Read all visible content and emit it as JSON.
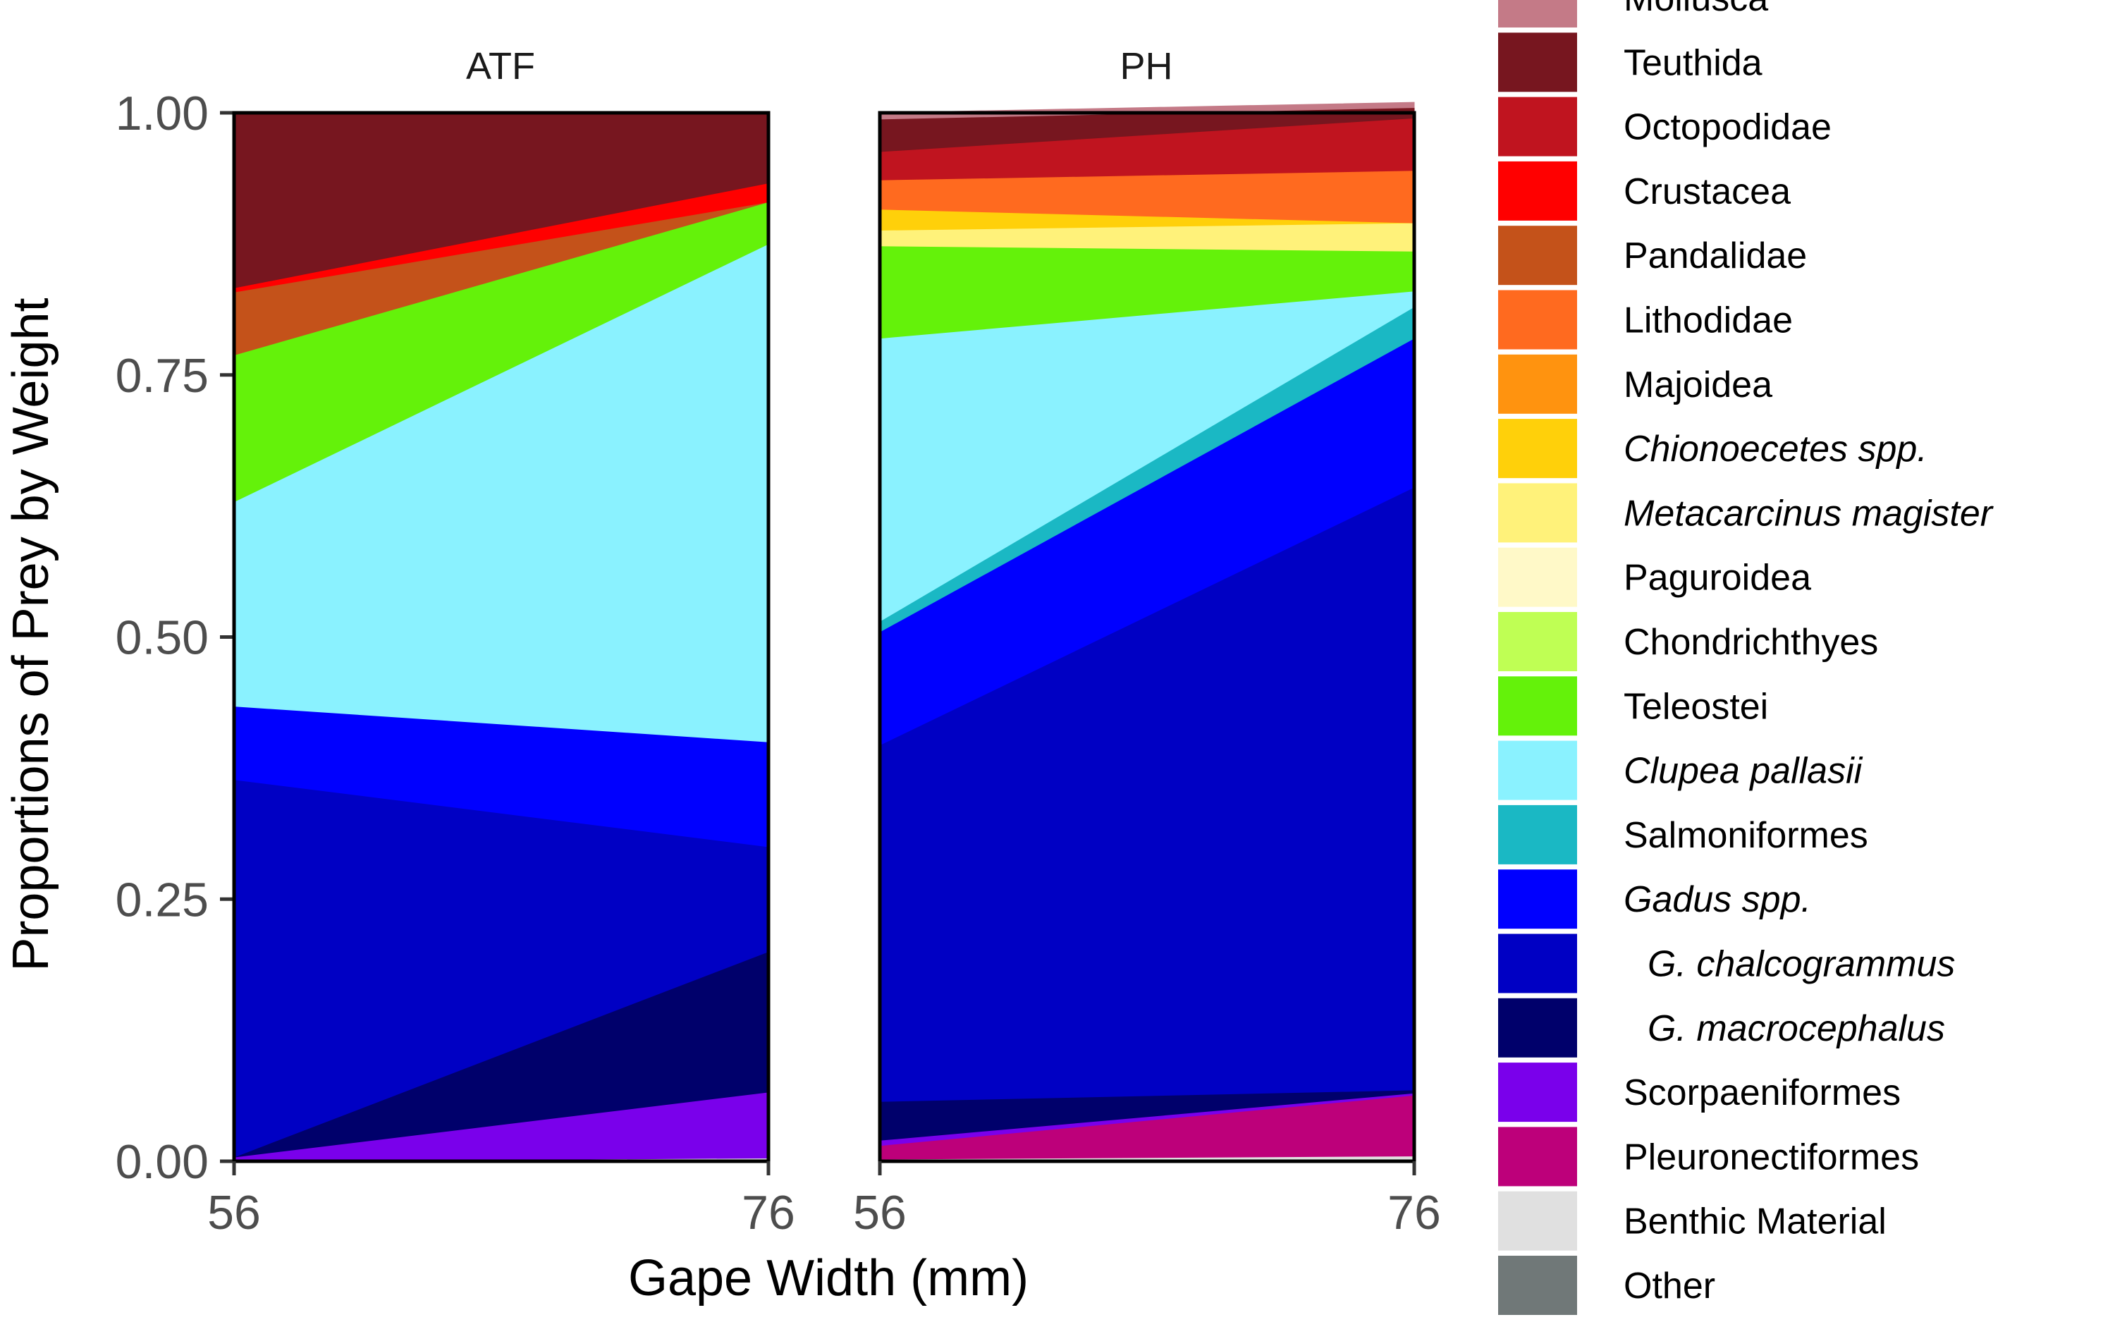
{
  "chart_data": {
    "type": "area",
    "stacked": true,
    "normalized": true,
    "xlabel": "Gape Width (mm)",
    "ylabel": "Proportions of Prey by Weight",
    "ylim": [
      0,
      1
    ],
    "yticks": [
      "0.00",
      "0.25",
      "0.50",
      "0.75",
      "1.00"
    ],
    "x": [
      56,
      76
    ],
    "xticks": [
      "56",
      "76"
    ],
    "grid": false,
    "legend_position": "right",
    "legend": [
      {
        "key": "mollusca",
        "label": "Mollusca",
        "color": "#c47a87",
        "italic": false,
        "indent": false
      },
      {
        "key": "teuthida",
        "label": "Teuthida",
        "color": "#77161f",
        "italic": false,
        "indent": false
      },
      {
        "key": "octopodidae",
        "label": "Octopodidae",
        "color": "#c0141f",
        "italic": false,
        "indent": false
      },
      {
        "key": "crustacea",
        "label": "Crustacea",
        "color": "#ff0000",
        "italic": false,
        "indent": false
      },
      {
        "key": "pandalidae",
        "label": "Pandalidae",
        "color": "#c4521a",
        "italic": false,
        "indent": false
      },
      {
        "key": "lithodidae",
        "label": "Lithodidae",
        "color": "#ff6a1f",
        "italic": false,
        "indent": false
      },
      {
        "key": "majoidea",
        "label": "Majoidea",
        "color": "#ff930f",
        "italic": false,
        "indent": false
      },
      {
        "key": "chionoecetes",
        "label": "Chionoecetes spp.",
        "color": "#ffd00a",
        "italic": true,
        "indent": false
      },
      {
        "key": "metacarcinus",
        "label": "Metacarcinus magister",
        "color": "#fff27a",
        "italic": true,
        "indent": false
      },
      {
        "key": "paguroidea",
        "label": "Paguroidea",
        "color": "#fff9c8",
        "italic": false,
        "indent": false
      },
      {
        "key": "chondrichthyes",
        "label": "Chondrichthyes",
        "color": "#bfff54",
        "italic": false,
        "indent": false
      },
      {
        "key": "teleostei",
        "label": "Teleostei",
        "color": "#64f20a",
        "italic": false,
        "indent": false
      },
      {
        "key": "clupea",
        "label": "Clupea pallasii",
        "color": "#8af2ff",
        "italic": true,
        "indent": false
      },
      {
        "key": "salmoniformes",
        "label": "Salmoniformes",
        "color": "#1ab8c4",
        "italic": false,
        "indent": false
      },
      {
        "key": "gadus",
        "label": "Gadus spp.",
        "color": "#0000ff",
        "italic": true,
        "indent": false
      },
      {
        "key": "chalcogrammus",
        "label": "G. chalcogrammus",
        "color": "#0000c4",
        "italic": true,
        "indent": true
      },
      {
        "key": "macrocephalus",
        "label": "G. macrocephalus",
        "color": "#00006b",
        "italic": true,
        "indent": true
      },
      {
        "key": "scorpaeniformes",
        "label": "Scorpaeniformes",
        "color": "#7a00eb",
        "italic": false,
        "indent": false
      },
      {
        "key": "pleuronectiformes",
        "label": "Pleuronectiformes",
        "color": "#bd007a",
        "italic": false,
        "indent": false
      },
      {
        "key": "benthic",
        "label": "Benthic Material",
        "color": "#e0e0e0",
        "italic": false,
        "indent": false
      },
      {
        "key": "other",
        "label": "Other",
        "color": "#707878",
        "italic": false,
        "indent": false
      }
    ],
    "panels": [
      {
        "title": "ATF",
        "stack_order_bottom_to_top": [
          "benthic",
          "scorpaeniformes",
          "macrocephalus",
          "chalcogrammus",
          "gadus",
          "clupea",
          "teleostei",
          "pandalidae",
          "crustacea",
          "teuthida"
        ],
        "series": [
          {
            "key": "benthic",
            "values": [
              0.0,
              0.003
            ]
          },
          {
            "key": "scorpaeniformes",
            "values": [
              0.004,
              0.063
            ]
          },
          {
            "key": "macrocephalus",
            "values": [
              0.0,
              0.134
            ]
          },
          {
            "key": "chalcogrammus",
            "values": [
              0.36,
              0.1
            ]
          },
          {
            "key": "gadus",
            "values": [
              0.07,
              0.1
            ]
          },
          {
            "key": "clupea",
            "values": [
              0.195,
              0.475
            ]
          },
          {
            "key": "teleostei",
            "values": [
              0.14,
              0.04
            ]
          },
          {
            "key": "pandalidae",
            "values": [
              0.06,
              0.0
            ]
          },
          {
            "key": "crustacea",
            "values": [
              0.004,
              0.018
            ]
          },
          {
            "key": "teuthida",
            "values": [
              0.167,
              0.067
            ]
          }
        ]
      },
      {
        "title": "PH",
        "stack_order_bottom_to_top": [
          "benthic",
          "pleuronectiformes",
          "scorpaeniformes",
          "macrocephalus",
          "chalcogrammus",
          "gadus",
          "salmoniformes",
          "clupea",
          "teleostei",
          "metacarcinus",
          "chionoecetes",
          "lithodidae",
          "octopodidae",
          "teuthida",
          "mollusca"
        ],
        "series": [
          {
            "key": "benthic",
            "values": [
              0.002,
              0.005
            ]
          },
          {
            "key": "pleuronectiformes",
            "values": [
              0.013,
              0.058
            ]
          },
          {
            "key": "scorpaeniformes",
            "values": [
              0.005,
              0.002
            ]
          },
          {
            "key": "macrocephalus",
            "values": [
              0.037,
              0.003
            ]
          },
          {
            "key": "chalcogrammus",
            "values": [
              0.34,
              0.575
            ]
          },
          {
            "key": "gadus",
            "values": [
              0.108,
              0.142
            ]
          },
          {
            "key": "salmoniformes",
            "values": [
              0.01,
              0.03
            ]
          },
          {
            "key": "clupea",
            "values": [
              0.27,
              0.015
            ]
          },
          {
            "key": "teleostei",
            "values": [
              0.088,
              0.038
            ]
          },
          {
            "key": "metacarcinus",
            "values": [
              0.015,
              0.027
            ]
          },
          {
            "key": "chionoecetes",
            "values": [
              0.02,
              0.0
            ]
          },
          {
            "key": "lithodidae",
            "values": [
              0.028,
              0.05
            ]
          },
          {
            "key": "octopodidae",
            "values": [
              0.027,
              0.05
            ]
          },
          {
            "key": "teuthida",
            "values": [
              0.031,
              0.01
            ]
          },
          {
            "key": "mollusca",
            "values": [
              0.006,
              0.005
            ]
          }
        ]
      }
    ]
  }
}
